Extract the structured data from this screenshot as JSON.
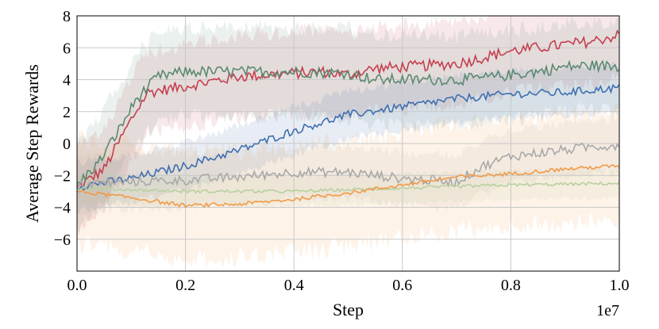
{
  "chart_data": {
    "type": "line",
    "title": "",
    "xlabel": "Step",
    "ylabel": "Average Step Rewards",
    "x_offset_label": "1e7",
    "xlim": [
      0.0,
      1.0
    ],
    "ylim": [
      -8,
      8
    ],
    "grid": true,
    "xticks": [
      0.0,
      0.2,
      0.4,
      0.6,
      0.8,
      1.0
    ],
    "xtick_labels": [
      "0.0",
      "0.2",
      "0.4",
      "0.6",
      "0.8",
      "1.0"
    ],
    "yticks": [
      -6,
      -4,
      -2,
      0,
      2,
      4,
      6,
      8
    ],
    "ytick_labels": [
      "−6",
      "−4",
      "−2",
      "0",
      "2",
      "4",
      "6",
      "8"
    ],
    "series": [
      {
        "name": "red",
        "color": "#c4404f",
        "band": 2.8,
        "x": [
          0.0,
          0.05,
          0.1,
          0.13,
          0.2,
          0.25,
          0.3,
          0.4,
          0.45,
          0.5,
          0.55,
          0.6,
          0.7,
          0.8,
          0.85,
          0.9,
          0.95,
          1.0
        ],
        "y": [
          -2.8,
          -1.6,
          1.5,
          3.2,
          3.6,
          3.9,
          4.2,
          4.4,
          4.5,
          4.3,
          4.7,
          4.8,
          5.0,
          5.8,
          6.0,
          6.2,
          6.4,
          6.8
        ],
        "noise": 0.35
      },
      {
        "name": "green",
        "color": "#5a8a70",
        "band": 3.0,
        "x": [
          0.0,
          0.04,
          0.08,
          0.11,
          0.15,
          0.2,
          0.3,
          0.4,
          0.5,
          0.55,
          0.6,
          0.7,
          0.75,
          0.8,
          0.85,
          0.9,
          0.95,
          1.0
        ],
        "y": [
          -2.6,
          -1.2,
          1.0,
          2.8,
          4.2,
          4.5,
          4.5,
          4.5,
          4.4,
          4.0,
          4.0,
          4.0,
          4.1,
          4.3,
          4.5,
          4.8,
          4.9,
          4.8
        ],
        "noise": 0.35
      },
      {
        "name": "blue",
        "color": "#3e6faf",
        "band": 1.6,
        "x": [
          0.0,
          0.1,
          0.2,
          0.3,
          0.4,
          0.5,
          0.6,
          0.7,
          0.8,
          0.9,
          1.0
        ],
        "y": [
          -2.7,
          -2.2,
          -1.4,
          -0.4,
          0.8,
          1.8,
          2.3,
          2.8,
          3.1,
          3.2,
          3.5
        ],
        "noise": 0.25
      },
      {
        "name": "gray",
        "color": "#a9a9a9",
        "band": 1.8,
        "x": [
          0.0,
          0.1,
          0.2,
          0.3,
          0.4,
          0.5,
          0.6,
          0.7,
          0.75,
          0.8,
          0.85,
          0.9,
          0.95,
          1.0
        ],
        "y": [
          -2.6,
          -2.4,
          -2.3,
          -2.1,
          -1.8,
          -1.8,
          -2.2,
          -2.4,
          -1.4,
          -0.8,
          -0.6,
          -0.4,
          -0.2,
          -0.1
        ],
        "noise": 0.3
      },
      {
        "name": "light-green",
        "color": "#b8d0a0",
        "band": 1.0,
        "x": [
          0.0,
          0.2,
          0.4,
          0.6,
          0.8,
          1.0
        ],
        "y": [
          -2.8,
          -3.0,
          -3.0,
          -2.8,
          -2.6,
          -2.5
        ],
        "noise": 0.1
      },
      {
        "name": "orange",
        "color": "#f09a48",
        "band": 3.6,
        "x": [
          0.0,
          0.1,
          0.2,
          0.3,
          0.4,
          0.5,
          0.6,
          0.7,
          0.8,
          0.9,
          1.0
        ],
        "y": [
          -3.0,
          -3.4,
          -3.9,
          -3.8,
          -3.5,
          -3.1,
          -2.6,
          -2.1,
          -1.9,
          -1.6,
          -1.4
        ],
        "noise": 0.12
      }
    ]
  }
}
